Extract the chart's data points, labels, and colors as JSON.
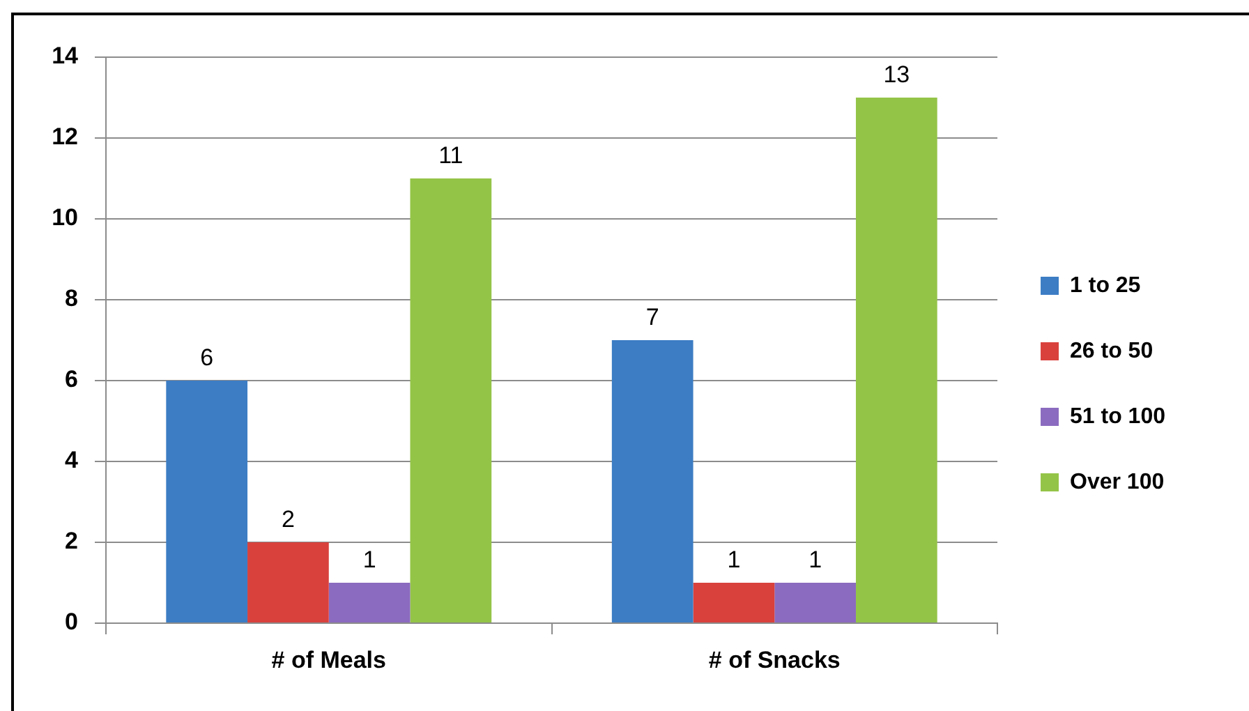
{
  "chart_data": {
    "type": "bar",
    "categories": [
      "# of Meals",
      "# of Snacks"
    ],
    "series": [
      {
        "name": "1 to 25",
        "color": "#3c7dc4",
        "values": [
          6,
          7
        ]
      },
      {
        "name": "26 to 50",
        "color": "#d9413c",
        "values": [
          2,
          1
        ]
      },
      {
        "name": "51 to 100",
        "color": "#8b6bbf",
        "values": [
          1,
          1
        ]
      },
      {
        "name": "Over 100",
        "color": "#94c447",
        "values": [
          11,
          13
        ]
      }
    ],
    "ylim": [
      0,
      14
    ],
    "yticks": [
      0,
      2,
      4,
      6,
      8,
      10,
      12,
      14
    ],
    "grid": "y",
    "legend": "right",
    "data_labels": true
  }
}
